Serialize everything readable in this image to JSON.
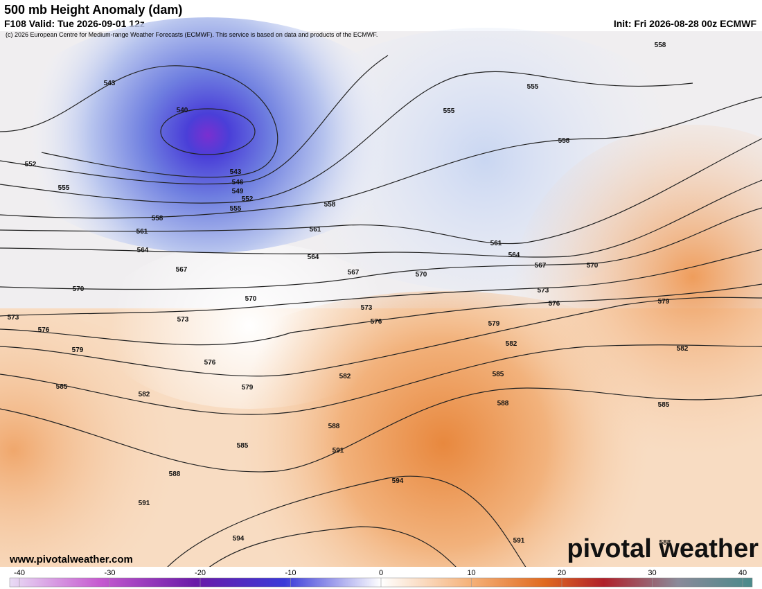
{
  "header": {
    "title": "500 mb Height Anomaly (dam)",
    "valid": "F108 Valid: Tue 2026-09-01 12z",
    "init": "Init: Fri 2026-08-28 00z ECMWF",
    "credit": "(c) 2026 European Centre for Medium-range Weather Forecasts (ECMWF). This service is based on data and products of the ECMWF."
  },
  "contours": {
    "labels": [
      543,
      540,
      543,
      546,
      549,
      552,
      555,
      552,
      555,
      558,
      561,
      564,
      567,
      570,
      570,
      573,
      573,
      576,
      576,
      579,
      579,
      585,
      582,
      582,
      588,
      585,
      588,
      591,
      591,
      594,
      594,
      591,
      588,
      585,
      582,
      579,
      585,
      588,
      582,
      579,
      576,
      573,
      570,
      567,
      564,
      561,
      558,
      561,
      564,
      567,
      570,
      573,
      576,
      555,
      555,
      558,
      558
    ]
  },
  "footer": {
    "website": "www.pivotalweather.com",
    "logo": "pivotal weather"
  },
  "colorbar": {
    "range": [
      -40,
      40
    ],
    "ticks": [
      -40,
      -30,
      -20,
      -10,
      0,
      10,
      20,
      30,
      40
    ]
  }
}
